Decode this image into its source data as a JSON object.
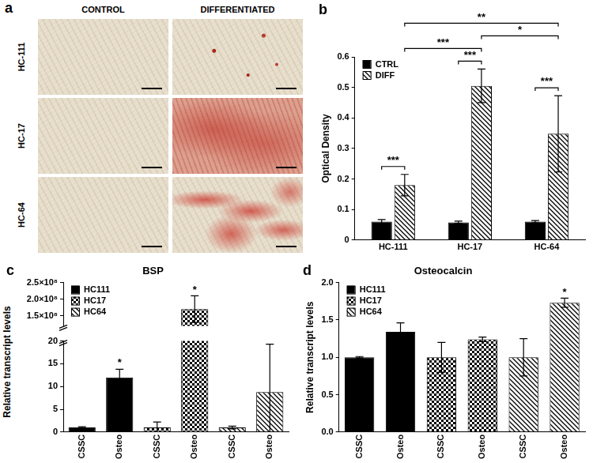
{
  "panel_a": {
    "panel": "a",
    "columns": [
      "CONTROL",
      "DIFFERENTIATED"
    ],
    "rows": [
      "HC-111",
      "HC-17",
      "HC-64"
    ]
  },
  "chart_data": [
    {
      "panel": "b",
      "type": "bar",
      "y_label": "Optical Density",
      "categories": [
        "HC-111",
        "HC-17",
        "HC-64"
      ],
      "series": [
        {
          "name": "CTRL",
          "color": "#000000",
          "marker": "solid",
          "values": [
            0.06,
            0.058,
            0.06
          ],
          "errors": [
            0.007,
            0.004,
            0.004
          ]
        },
        {
          "name": "DIFF",
          "color": "#000000",
          "marker": "hatch",
          "values": [
            0.18,
            0.505,
            0.348
          ],
          "errors": [
            0.035,
            0.055,
            0.125
          ]
        }
      ],
      "ylim": [
        0,
        0.6
      ],
      "yticks": [
        0,
        0.1,
        0.2,
        0.3,
        0.4,
        0.5,
        0.6
      ],
      "grid": false,
      "legend": "top-left",
      "annotations": [
        {
          "label": "***",
          "from": {
            "category": "HC-111",
            "series": "CTRL"
          },
          "to": {
            "category": "HC-111",
            "series": "DIFF"
          }
        },
        {
          "label": "***",
          "from": {
            "category": "HC-64",
            "series": "CTRL"
          },
          "to": {
            "category": "HC-64",
            "series": "DIFF"
          }
        },
        {
          "label": "***",
          "from": {
            "category": "HC-17",
            "series": "CTRL"
          },
          "to": {
            "category": "HC-17",
            "series": "DIFF"
          }
        },
        {
          "label": "*",
          "from": {
            "category": "HC-17",
            "series": "DIFF"
          },
          "to": {
            "category": "HC-64",
            "series": "DIFF"
          }
        },
        {
          "label": "***",
          "from": {
            "category": "HC-111",
            "series": "DIFF"
          },
          "to": {
            "category": "HC-17",
            "series": "DIFF"
          }
        },
        {
          "label": "**",
          "from": {
            "category": "HC-111",
            "series": "DIFF"
          },
          "to": {
            "category": "HC-64",
            "series": "DIFF"
          }
        }
      ]
    },
    {
      "panel": "c",
      "type": "bar",
      "title": "BSP",
      "y_label": "Relative transcript levels",
      "categories": [
        "CSSC",
        "Osteo",
        "CSSC",
        "Osteo",
        "CSSC",
        "Osteo"
      ],
      "series": [
        {
          "name": "HC111",
          "color": "#000000",
          "marker": "solid",
          "values": [
            1,
            12,
            null,
            null,
            null,
            null
          ],
          "errors": [
            0.15,
            1.8,
            null,
            null,
            null,
            null
          ]
        },
        {
          "name": "HC17",
          "color": "#000000",
          "marker": "checker",
          "values": [
            null,
            null,
            1,
            170000000,
            null,
            null
          ],
          "errors": [
            null,
            null,
            1.2,
            40000000,
            null,
            null
          ]
        },
        {
          "name": "HC64",
          "color": "#000000",
          "marker": "hatch",
          "values": [
            null,
            null,
            null,
            null,
            1,
            8.8
          ],
          "errors": [
            null,
            null,
            null,
            null,
            0.3,
            10.5
          ]
        }
      ],
      "ylim": [
        [
          0,
          20
        ],
        [
          120000000,
          250000000
        ]
      ],
      "yticks": [
        [
          0,
          5,
          10,
          15,
          20
        ],
        [
          {
            "value": 150000000,
            "label": "1.5×10⁸"
          },
          {
            "value": 200000000,
            "label": "2.0×10⁸"
          },
          {
            "value": 250000000,
            "label": "2.5×10⁸"
          }
        ]
      ],
      "grid": false,
      "legend": "top-left",
      "annotations": [
        {
          "label": "*",
          "category_index": 1,
          "series": "HC111"
        },
        {
          "label": "*",
          "category_index": 3,
          "series": "HC17"
        }
      ]
    },
    {
      "panel": "d",
      "type": "bar",
      "title": "Osteocalcin",
      "y_label": "Relative transcript levels",
      "categories": [
        "CSSC",
        "Osteo",
        "CSSC",
        "Osteo",
        "CSSC",
        "Osteo"
      ],
      "series": [
        {
          "name": "HC111",
          "color": "#000000",
          "marker": "solid",
          "values": [
            1.0,
            1.34,
            null,
            null,
            null,
            null
          ],
          "errors": [
            0.01,
            0.12,
            null,
            null,
            null,
            null
          ]
        },
        {
          "name": "HC17",
          "color": "#000000",
          "marker": "checker",
          "values": [
            null,
            null,
            1.0,
            1.24,
            null,
            null
          ],
          "errors": [
            null,
            null,
            0.2,
            0.03,
            null,
            null
          ]
        },
        {
          "name": "HC64",
          "color": "#000000",
          "marker": "hatch",
          "values": [
            null,
            null,
            null,
            null,
            1.0,
            1.73
          ],
          "errors": [
            null,
            null,
            null,
            null,
            0.25,
            0.06
          ]
        }
      ],
      "ylim": [
        0,
        2
      ],
      "yticks": [
        {
          "value": 0,
          "label": "0.0"
        },
        {
          "value": 0.5,
          "label": "0.5"
        },
        {
          "value": 1,
          "label": "1.0"
        },
        {
          "value": 1.5,
          "label": "1.5"
        },
        {
          "value": 2,
          "label": "2.0"
        }
      ],
      "grid": false,
      "legend": "top-left",
      "annotations": [
        {
          "label": "*",
          "category_index": 5,
          "series": "HC64"
        }
      ]
    }
  ]
}
